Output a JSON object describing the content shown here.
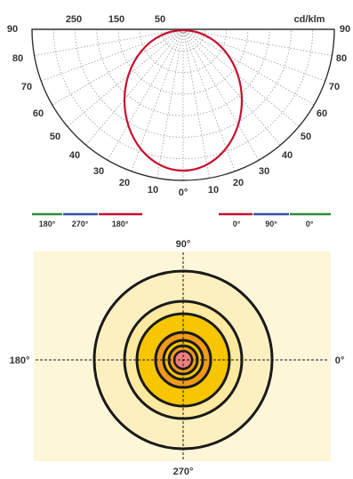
{
  "polar_diagram": {
    "unit_label": "cd/klm",
    "intensity_ticks": [
      "250",
      "150",
      "50"
    ],
    "left_angle_labels": [
      "90",
      "80",
      "70",
      "60",
      "50",
      "40",
      "30",
      "20",
      "10"
    ],
    "right_angle_labels": [
      "90",
      "80",
      "70",
      "60",
      "50",
      "40",
      "30",
      "20",
      "10"
    ],
    "center_label": "0°",
    "curve_color": "#c8102e"
  },
  "legend": {
    "left": [
      {
        "label": "180°",
        "color": "#2e8b3a"
      },
      {
        "label": "270°",
        "color": "#2f4fa3"
      },
      {
        "label": "180°",
        "color": "#c8102e"
      }
    ],
    "right": [
      {
        "label": "0°",
        "color": "#c8102e"
      },
      {
        "label": "90°",
        "color": "#2f4fa3"
      },
      {
        "label": "0°",
        "color": "#2e8b3a"
      }
    ]
  },
  "isolux_diagram": {
    "top_label": "90°",
    "left_label": "180°",
    "right_label": "0°",
    "bottom_label": "270°",
    "colors": {
      "background": "#fdf6d8",
      "outer": "#fdf0c0",
      "middle": "#fde9a0",
      "inner": "#f7c600",
      "core": "#f09a1a",
      "center": "#f07f7f"
    }
  }
}
